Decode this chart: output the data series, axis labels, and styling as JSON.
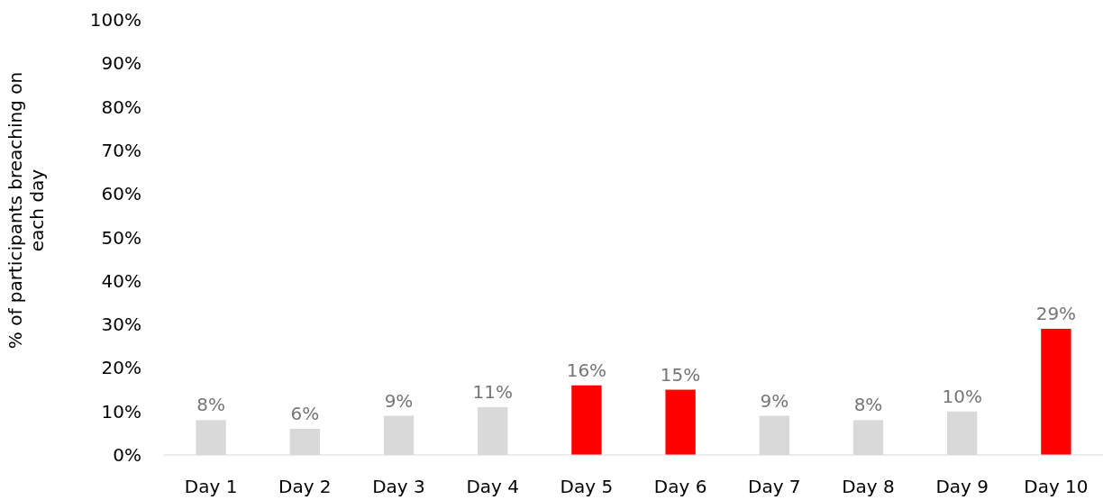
{
  "chart_data": {
    "type": "bar",
    "ylabel": "% of participants breaching on each day",
    "categories": [
      "Day 1",
      "Day 2",
      "Day 3",
      "Day 4",
      "Day 5",
      "Day 6",
      "Day 7",
      "Day 8",
      "Day 9",
      "Day 10"
    ],
    "values": [
      8,
      6,
      9,
      11,
      16,
      15,
      9,
      8,
      10,
      29
    ],
    "colors": [
      "#d9d9d9",
      "#d9d9d9",
      "#d9d9d9",
      "#d9d9d9",
      "#ff0000",
      "#ff0000",
      "#d9d9d9",
      "#d9d9d9",
      "#d9d9d9",
      "#ff0000"
    ],
    "ylim": [
      0,
      100
    ],
    "yticks": [
      {
        "value": 0,
        "label": "0%"
      },
      {
        "value": 10,
        "label": "10%"
      },
      {
        "value": 20,
        "label": "20%"
      },
      {
        "value": 30,
        "label": "30%"
      },
      {
        "value": 40,
        "label": "40%"
      },
      {
        "value": 50,
        "label": "50%"
      },
      {
        "value": 60,
        "label": "60%"
      },
      {
        "value": 70,
        "label": "70%"
      },
      {
        "value": 80,
        "label": "80%"
      },
      {
        "value": 90,
        "label": "90%"
      },
      {
        "value": 100,
        "label": "100%"
      }
    ],
    "value_labels": [
      "8%",
      "6%",
      "9%",
      "11%",
      "16%",
      "15%",
      "9%",
      "8%",
      "10%",
      "29%"
    ],
    "grid": false
  }
}
